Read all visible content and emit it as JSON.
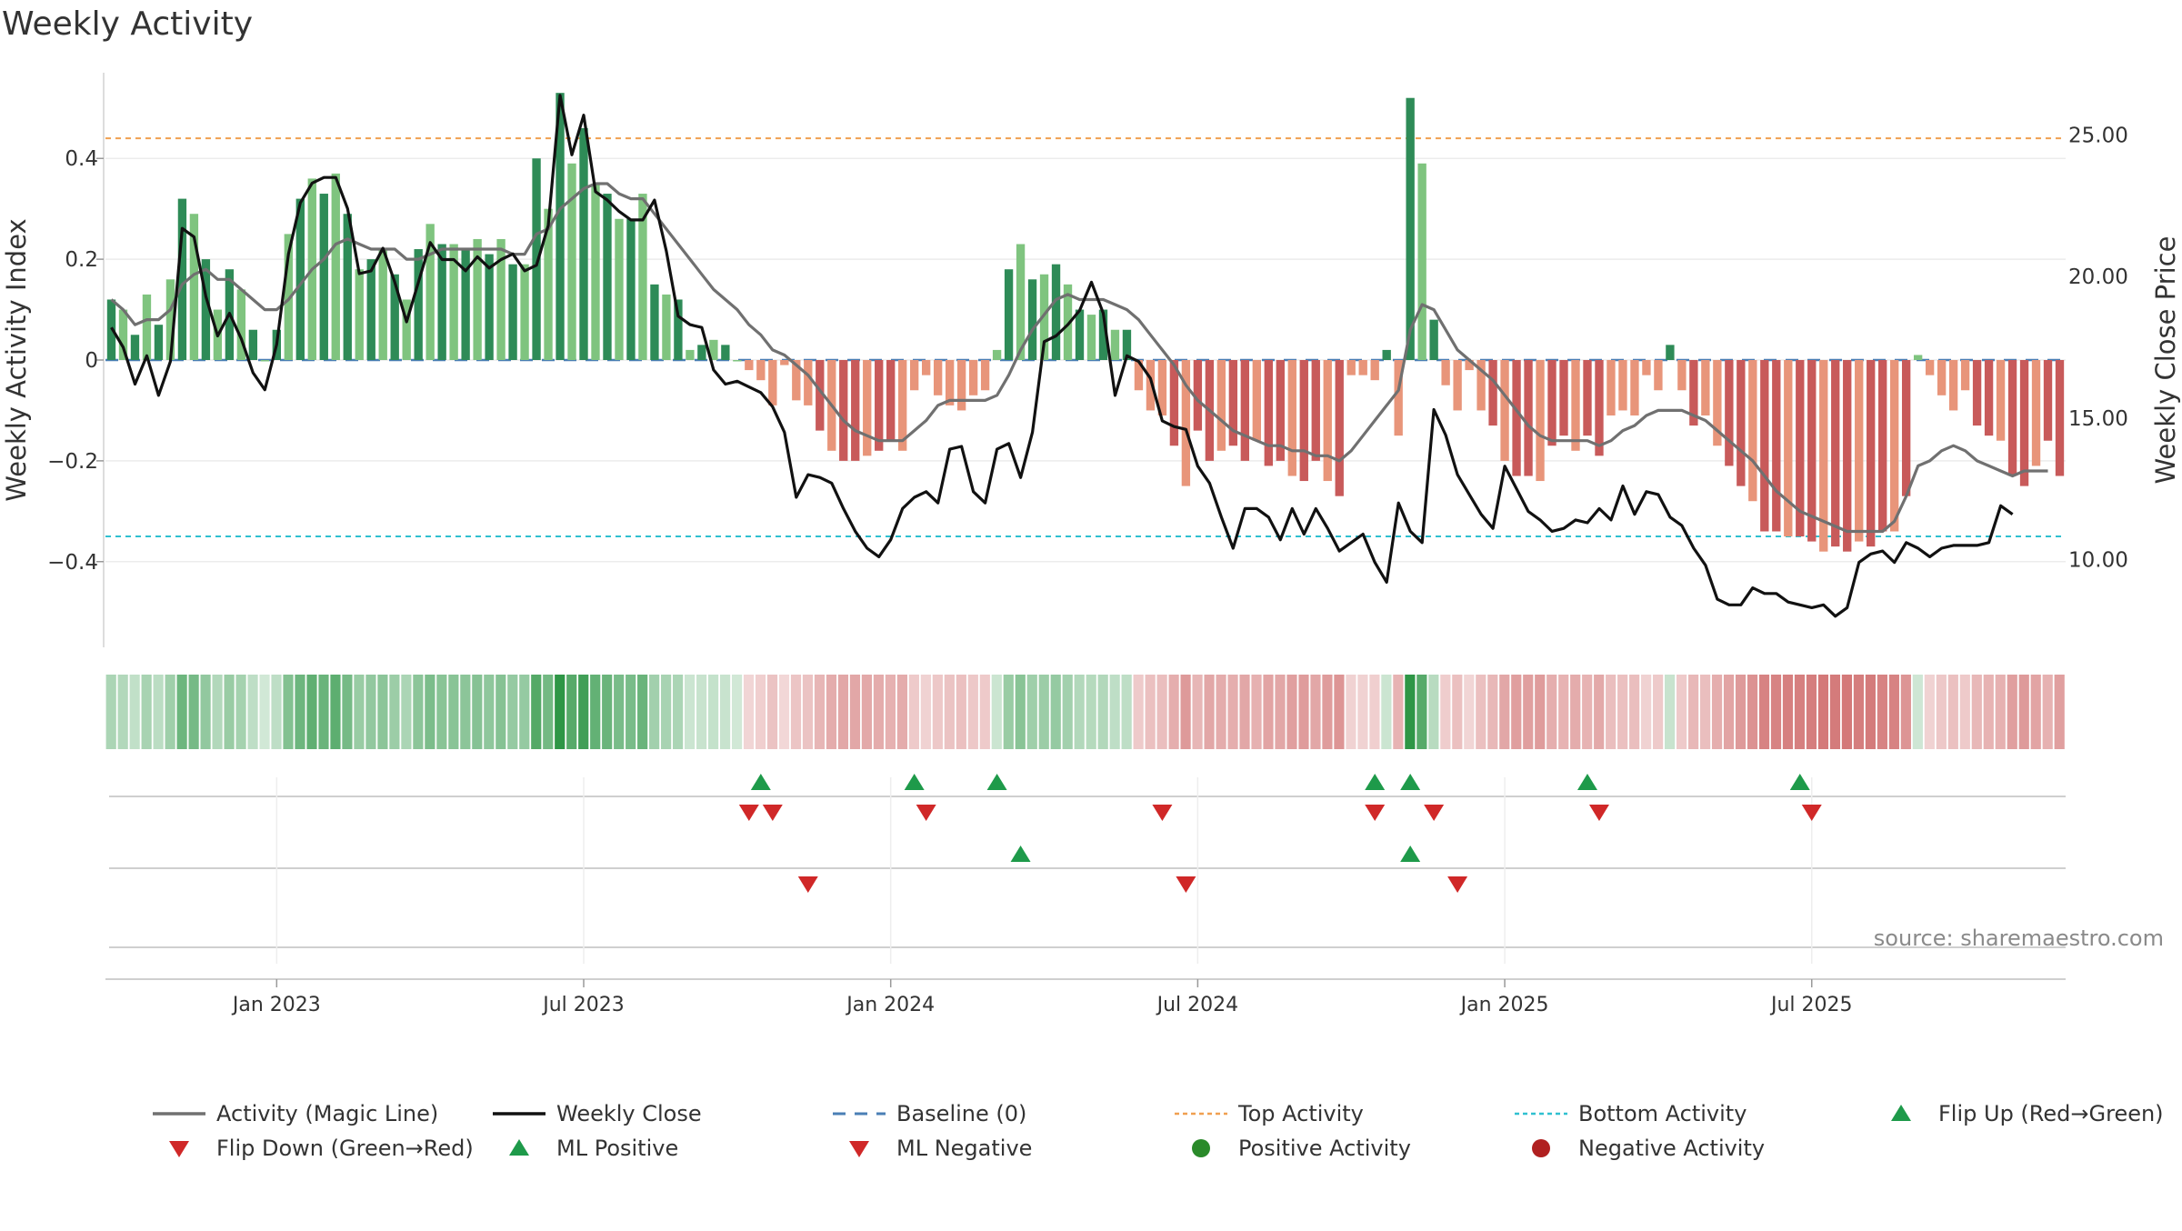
{
  "chart_data": {
    "type": "bar",
    "title": "Weekly Activity",
    "ylabel": "Weekly Activity Index",
    "y2label": "Weekly Close Price",
    "source": "source: sharemaestro.com",
    "ylim": [
      -0.57,
      0.57
    ],
    "y2lim": [
      6.9,
      27.2
    ],
    "y_ticks": [
      {
        "v": 0.4,
        "label": "0.4"
      },
      {
        "v": 0.2,
        "label": "0.2"
      },
      {
        "v": 0,
        "label": "0"
      },
      {
        "v": -0.2,
        "label": "−0.2"
      },
      {
        "v": -0.4,
        "label": "−0.4"
      }
    ],
    "y2_ticks": [
      {
        "v": 25,
        "label": "25.00"
      },
      {
        "v": 20,
        "label": "20.00"
      },
      {
        "v": 15,
        "label": "15.00"
      },
      {
        "v": 10,
        "label": "10.00"
      }
    ],
    "x_ticks": [
      {
        "week": 14,
        "label": "Jan 2023"
      },
      {
        "week": 40,
        "label": "Jul 2023"
      },
      {
        "week": 66,
        "label": "Jan 2024"
      },
      {
        "week": 92,
        "label": "Jul 2024"
      },
      {
        "week": 118,
        "label": "Jan 2025"
      },
      {
        "week": 144,
        "label": "Jul 2025"
      }
    ],
    "top_activity": 0.44,
    "bottom_activity": -0.35,
    "colors": {
      "pos_dark": "#2e8b57",
      "pos_light": "#7fc47f",
      "neg_dark": "#c85a5a",
      "neg_light": "#e8957a",
      "magic": "#707070",
      "close": "#111111",
      "baseline": "#4a7fb5",
      "top": "#f0a050",
      "bottom": "#30c0d0",
      "up": "#1e9a4a",
      "down": "#d02828",
      "pos_dot": "#2a8a2a",
      "neg_dot": "#b02020"
    },
    "activity": [
      0.12,
      0.1,
      0.05,
      0.13,
      0.07,
      0.16,
      0.32,
      0.29,
      0.2,
      0.1,
      0.18,
      0.14,
      0.06,
      0.0,
      0.06,
      0.25,
      0.32,
      0.36,
      0.33,
      0.37,
      0.29,
      0.18,
      0.2,
      0.22,
      0.17,
      0.12,
      0.22,
      0.27,
      0.23,
      0.23,
      0.22,
      0.24,
      0.21,
      0.24,
      0.19,
      0.19,
      0.4,
      0.3,
      0.53,
      0.39,
      0.46,
      0.35,
      0.33,
      0.28,
      0.28,
      0.33,
      0.15,
      0.13,
      0.12,
      0.02,
      0.03,
      0.04,
      0.03,
      0.0,
      -0.02,
      -0.04,
      -0.09,
      -0.01,
      -0.08,
      -0.09,
      -0.14,
      -0.18,
      -0.2,
      -0.2,
      -0.19,
      -0.18,
      -0.16,
      -0.18,
      -0.06,
      -0.03,
      -0.07,
      -0.09,
      -0.1,
      -0.07,
      -0.06,
      0.02,
      0.18,
      0.23,
      0.16,
      0.17,
      0.19,
      0.15,
      0.1,
      0.09,
      0.1,
      0.06,
      0.06,
      -0.06,
      -0.1,
      -0.11,
      -0.17,
      -0.25,
      -0.14,
      -0.2,
      -0.18,
      -0.17,
      -0.2,
      -0.16,
      -0.21,
      -0.2,
      -0.23,
      -0.24,
      -0.2,
      -0.24,
      -0.27,
      -0.03,
      -0.03,
      -0.04,
      0.02,
      -0.15,
      0.52,
      0.39,
      0.08,
      -0.05,
      -0.1,
      -0.02,
      -0.1,
      -0.13,
      -0.2,
      -0.23,
      -0.23,
      -0.24,
      -0.17,
      -0.15,
      -0.18,
      -0.15,
      -0.19,
      -0.11,
      -0.1,
      -0.11,
      -0.03,
      -0.06,
      0.03,
      -0.06,
      -0.13,
      -0.11,
      -0.17,
      -0.21,
      -0.25,
      -0.28,
      -0.34,
      -0.34,
      -0.35,
      -0.35,
      -0.36,
      -0.38,
      -0.37,
      -0.38,
      -0.36,
      -0.37,
      -0.34,
      -0.34,
      -0.27,
      0.01,
      -0.03,
      -0.07,
      -0.1,
      -0.06,
      -0.13,
      -0.15,
      -0.16,
      -0.23,
      -0.25,
      -0.21,
      -0.16,
      -0.23
    ],
    "magic_line": [
      0.12,
      0.1,
      0.07,
      0.08,
      0.08,
      0.1,
      0.15,
      0.17,
      0.18,
      0.16,
      0.16,
      0.14,
      0.12,
      0.1,
      0.1,
      0.12,
      0.15,
      0.18,
      0.2,
      0.23,
      0.24,
      0.23,
      0.22,
      0.22,
      0.22,
      0.2,
      0.2,
      0.21,
      0.22,
      0.22,
      0.22,
      0.22,
      0.22,
      0.22,
      0.21,
      0.21,
      0.25,
      0.26,
      0.3,
      0.32,
      0.34,
      0.35,
      0.35,
      0.33,
      0.32,
      0.32,
      0.29,
      0.26,
      0.23,
      0.2,
      0.17,
      0.14,
      0.12,
      0.1,
      0.07,
      0.05,
      0.02,
      0.01,
      -0.01,
      -0.03,
      -0.06,
      -0.09,
      -0.12,
      -0.14,
      -0.15,
      -0.16,
      -0.16,
      -0.16,
      -0.14,
      -0.12,
      -0.09,
      -0.08,
      -0.08,
      -0.08,
      -0.08,
      -0.07,
      -0.03,
      0.02,
      0.06,
      0.09,
      0.12,
      0.13,
      0.12,
      0.12,
      0.12,
      0.11,
      0.1,
      0.08,
      0.05,
      0.02,
      -0.01,
      -0.05,
      -0.08,
      -0.1,
      -0.12,
      -0.14,
      -0.15,
      -0.16,
      -0.17,
      -0.17,
      -0.18,
      -0.18,
      -0.19,
      -0.19,
      -0.2,
      -0.18,
      -0.15,
      -0.12,
      -0.09,
      -0.06,
      0.06,
      0.11,
      0.1,
      0.06,
      0.02,
      0.0,
      -0.02,
      -0.04,
      -0.07,
      -0.1,
      -0.13,
      -0.15,
      -0.16,
      -0.16,
      -0.16,
      -0.16,
      -0.17,
      -0.16,
      -0.14,
      -0.13,
      -0.11,
      -0.1,
      -0.1,
      -0.1,
      -0.11,
      -0.12,
      -0.14,
      -0.16,
      -0.18,
      -0.2,
      -0.23,
      -0.26,
      -0.28,
      -0.3,
      -0.31,
      -0.32,
      -0.33,
      -0.34,
      -0.34,
      -0.34,
      -0.34,
      -0.32,
      -0.27,
      -0.21,
      -0.2,
      -0.18,
      -0.17,
      -0.18,
      -0.2,
      -0.21,
      -0.22,
      -0.23,
      -0.22,
      -0.22,
      -0.22
    ],
    "weekly_close": [
      18.2,
      17.5,
      16.2,
      17.2,
      15.8,
      17.0,
      21.7,
      21.4,
      19.3,
      17.9,
      18.7,
      17.8,
      16.6,
      16.0,
      17.6,
      20.8,
      22.6,
      23.3,
      23.5,
      23.5,
      22.4,
      20.1,
      20.2,
      21.0,
      19.8,
      18.4,
      19.8,
      21.2,
      20.6,
      20.6,
      20.2,
      20.7,
      20.3,
      20.6,
      20.8,
      20.2,
      20.4,
      21.8,
      26.4,
      24.3,
      25.7,
      23.0,
      22.7,
      22.3,
      22.0,
      22.0,
      22.7,
      20.9,
      18.6,
      18.3,
      18.2,
      16.7,
      16.2,
      16.3,
      16.1,
      15.9,
      15.4,
      14.5,
      12.2,
      13.0,
      12.9,
      12.7,
      11.8,
      11.0,
      10.4,
      10.1,
      10.7,
      11.8,
      12.2,
      12.4,
      12.0,
      13.9,
      14.0,
      12.4,
      12.0,
      13.9,
      14.1,
      12.9,
      14.5,
      17.7,
      17.9,
      18.3,
      18.8,
      19.8,
      18.7,
      15.8,
      17.2,
      17.0,
      16.4,
      14.9,
      14.7,
      14.6,
      13.3,
      12.7,
      11.5,
      10.4,
      11.8,
      11.8,
      11.5,
      10.7,
      11.8,
      10.9,
      11.8,
      11.1,
      10.3,
      10.6,
      10.9,
      9.9,
      9.2,
      12.0,
      11.0,
      10.6,
      15.3,
      14.4,
      13.0,
      12.3,
      11.6,
      11.1,
      13.3,
      12.5,
      11.7,
      11.4,
      11.0,
      11.1,
      11.4,
      11.3,
      11.8,
      11.4,
      12.6,
      11.6,
      12.4,
      12.3,
      11.5,
      11.2,
      10.4,
      9.8,
      8.6,
      8.4,
      8.4,
      9.0,
      8.8,
      8.8,
      8.5,
      8.4,
      8.3,
      8.4,
      8.0,
      8.3,
      9.9,
      10.2,
      10.3,
      9.9,
      10.6,
      10.4,
      10.1,
      10.4,
      10.5,
      10.5,
      10.5,
      10.6,
      11.9,
      11.6
    ],
    "strip": [
      0.12,
      0.1,
      0.05,
      0.13,
      0.07,
      0.16,
      0.32,
      0.29,
      0.2,
      0.1,
      0.18,
      0.14,
      0.06,
      0.0,
      0.06,
      0.25,
      0.32,
      0.36,
      0.33,
      0.37,
      0.29,
      0.18,
      0.2,
      0.22,
      0.17,
      0.12,
      0.22,
      0.27,
      0.23,
      0.23,
      0.22,
      0.24,
      0.21,
      0.24,
      0.19,
      0.19,
      0.4,
      0.3,
      0.53,
      0.39,
      0.46,
      0.35,
      0.33,
      0.28,
      0.28,
      0.33,
      0.15,
      0.13,
      0.12,
      0.02,
      0.03,
      0.04,
      0.03,
      0.0,
      -0.02,
      -0.04,
      -0.09,
      -0.01,
      -0.08,
      -0.09,
      -0.14,
      -0.18,
      -0.2,
      -0.2,
      -0.19,
      -0.18,
      -0.16,
      -0.18,
      -0.06,
      -0.03,
      -0.07,
      -0.09,
      -0.1,
      -0.07,
      -0.06,
      0.02,
      0.18,
      0.23,
      0.16,
      0.17,
      0.19,
      0.15,
      0.1,
      0.09,
      0.1,
      0.06,
      0.06,
      -0.06,
      -0.1,
      -0.11,
      -0.17,
      -0.25,
      -0.14,
      -0.2,
      -0.18,
      -0.17,
      -0.2,
      -0.16,
      -0.21,
      -0.2,
      -0.23,
      -0.24,
      -0.2,
      -0.24,
      -0.27,
      -0.03,
      -0.03,
      -0.04,
      0.02,
      -0.15,
      0.52,
      0.39,
      0.08,
      -0.05,
      -0.1,
      -0.02,
      -0.1,
      -0.13,
      -0.2,
      -0.23,
      -0.23,
      -0.24,
      -0.17,
      -0.15,
      -0.18,
      -0.15,
      -0.19,
      -0.11,
      -0.1,
      -0.11,
      -0.03,
      -0.06,
      0.03,
      -0.06,
      -0.13,
      -0.11,
      -0.17,
      -0.21,
      -0.25,
      -0.28,
      -0.34,
      -0.34,
      -0.35,
      -0.35,
      -0.36,
      -0.38,
      -0.37,
      -0.38,
      -0.36,
      -0.37,
      -0.34,
      -0.34,
      -0.27,
      0.01,
      -0.03,
      -0.07,
      -0.1,
      -0.06,
      -0.13,
      -0.15,
      -0.16,
      -0.23,
      -0.25,
      -0.21,
      -0.16,
      -0.23
    ],
    "flip_up_weeks": [
      55,
      68,
      75,
      107,
      110,
      125,
      143
    ],
    "flip_down_weeks": [
      54,
      56,
      69,
      89,
      107,
      112,
      126,
      144
    ],
    "ml_positive_weeks": [
      77,
      110
    ],
    "ml_negative_weeks": [
      59,
      91,
      114
    ],
    "legend": [
      {
        "kind": "line",
        "key": "magic",
        "label": "Activity (Magic Line)"
      },
      {
        "kind": "line",
        "key": "close",
        "label": "Weekly Close"
      },
      {
        "kind": "dash",
        "key": "baseline",
        "label": "Baseline (0)"
      },
      {
        "kind": "dot",
        "key": "top",
        "label": "Top Activity"
      },
      {
        "kind": "dot",
        "key": "bottom",
        "label": "Bottom Activity"
      },
      {
        "kind": "tri-up",
        "key": "up",
        "label": "Flip Up (Red→Green)"
      },
      {
        "kind": "tri-down",
        "key": "down",
        "label": "Flip Down (Green→Red)"
      },
      {
        "kind": "tri-up",
        "key": "up",
        "label": "ML Positive"
      },
      {
        "kind": "tri-down",
        "key": "down",
        "label": "ML Negative"
      },
      {
        "kind": "circle",
        "key": "pos_dot",
        "label": "Positive Activity"
      },
      {
        "kind": "circle",
        "key": "neg_dot",
        "label": "Negative Activity"
      }
    ]
  }
}
